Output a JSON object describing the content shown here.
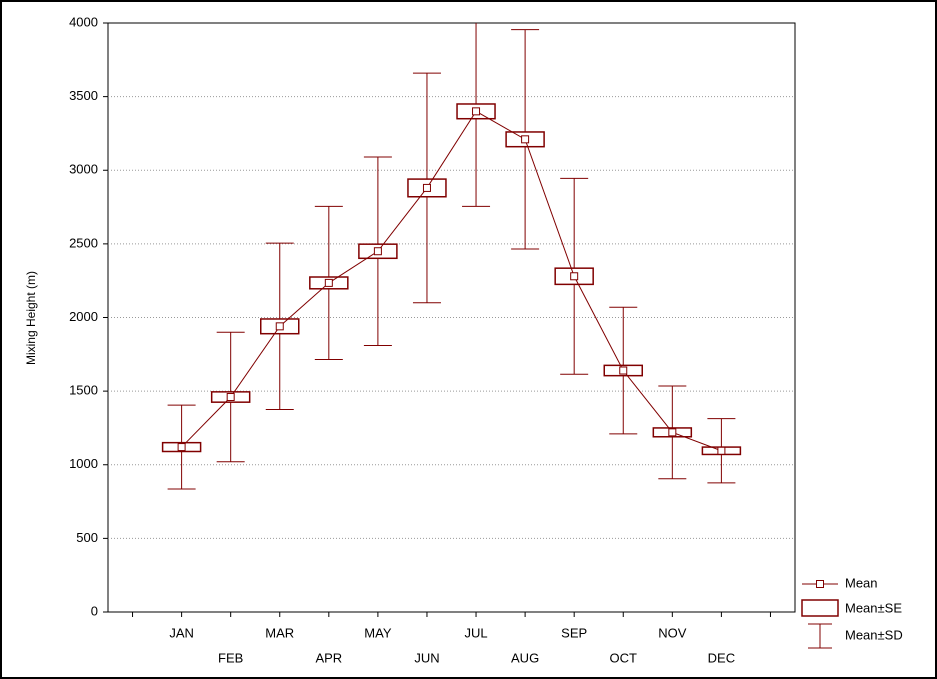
{
  "chart_data": {
    "type": "errorbox",
    "y_label": "Mixing Height (m)",
    "categories": [
      "JAN",
      "FEB",
      "MAR",
      "APR",
      "MAY",
      "JUN",
      "JUL",
      "AUG",
      "SEP",
      "OCT",
      "NOV",
      "DEC"
    ],
    "series": [
      {
        "name": "Mean",
        "values": [
          1120,
          1460,
          1940,
          2235,
          2450,
          2880,
          3400,
          3210,
          2280,
          1640,
          1220,
          1095
        ]
      },
      {
        "name": "Mean±SE",
        "values": [
          30,
          35,
          50,
          40,
          48,
          60,
          50,
          50,
          55,
          35,
          30,
          25
        ]
      },
      {
        "name": "Mean±SD",
        "values": [
          285,
          440,
          565,
          520,
          640,
          780,
          645,
          745,
          665,
          430,
          315,
          218
        ]
      }
    ],
    "color": "#800000",
    "ylim": [
      0,
      4000
    ],
    "yticks": [
      0,
      500,
      1000,
      1500,
      2000,
      2500,
      3000,
      3500,
      4000
    ],
    "grid": true
  }
}
